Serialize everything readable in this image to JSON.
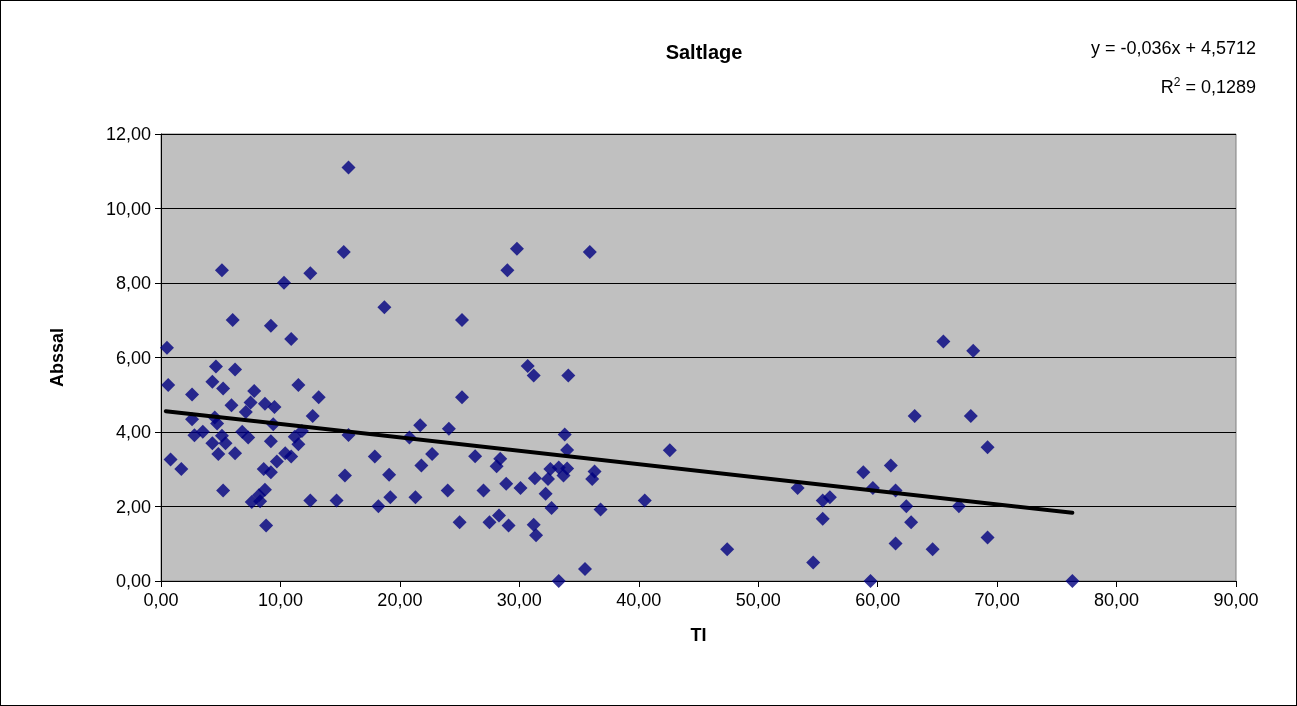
{
  "chart_data": {
    "type": "scatter",
    "title": "Saltlage",
    "xlabel": "TI",
    "ylabel": "Abssal",
    "annotations": [
      "y = -0,036x + 4,5712",
      "R$^{2}$ = 0,1289"
    ],
    "xlim": [
      0,
      90
    ],
    "xticks": [
      {
        "value": 0,
        "label": "0,00"
      },
      {
        "value": 10,
        "label": "10,00"
      },
      {
        "value": 20,
        "label": "20,00"
      },
      {
        "value": 30,
        "label": "30,00"
      },
      {
        "value": 40,
        "label": "40,00"
      },
      {
        "value": 50,
        "label": "50,00"
      },
      {
        "value": 60,
        "label": "60,00"
      },
      {
        "value": 70,
        "label": "70,00"
      },
      {
        "value": 80,
        "label": "80,00"
      },
      {
        "value": 90,
        "label": "90,00"
      }
    ],
    "ylim": [
      0,
      12
    ],
    "yticks": [
      {
        "value": 0,
        "label": "0,00"
      },
      {
        "value": 2,
        "label": "2,00"
      },
      {
        "value": 4,
        "label": "4,00"
      },
      {
        "value": 6,
        "label": "6,00"
      },
      {
        "value": 8,
        "label": "8,00"
      },
      {
        "value": 10,
        "label": "10,00"
      },
      {
        "value": 12,
        "label": "12,00"
      }
    ],
    "grid": "y",
    "marker": "diamond",
    "series": [
      {
        "color": "#000080",
        "x": [
          15.7,
          15.3,
          5.1,
          10.3,
          12.5,
          6.0,
          9.2,
          10.9,
          18.7,
          0.5,
          4.6,
          6.2,
          0.6,
          4.3,
          5.2,
          2.6,
          7.8,
          11.5,
          13.2,
          5.9,
          7.5,
          7.1,
          8.7,
          9.5,
          12.7,
          2.6,
          4.5,
          4.7,
          9.4,
          2.8,
          3.5,
          5.1,
          5.4,
          4.3,
          4.8,
          6.2,
          6.8,
          7.3,
          9.2,
          11.2,
          11.8,
          11.5,
          15.7,
          10.4,
          10.9,
          0.8,
          1.7,
          9.7,
          8.6,
          9.2,
          17.9,
          15.4,
          19.1,
          5.2,
          8.7,
          8.2,
          7.6,
          8.3,
          12.5,
          14.7,
          19.2,
          18.2,
          8.8,
          29.8,
          35.9,
          29.0,
          25.2,
          30.7,
          31.2,
          34.1,
          25.2,
          20.8,
          21.7,
          24.1,
          33.8,
          34.0,
          42.6,
          22.7,
          21.8,
          26.3,
          28.4,
          28.1,
          32.6,
          33.3,
          34.0,
          33.7,
          32.4,
          31.3,
          36.3,
          36.1,
          28.9,
          30.1,
          32.2,
          32.7,
          21.3,
          24.0,
          27.0,
          36.8,
          40.5,
          25.0,
          27.5,
          28.3,
          29.1,
          31.2,
          31.4,
          35.5,
          33.3,
          65.5,
          68.0,
          63.1,
          67.8,
          69.2,
          47.4,
          53.3,
          55.4,
          56.0,
          55.4,
          54.6,
          58.8,
          59.6,
          61.1,
          61.5,
          62.4,
          62.8,
          61.5,
          64.6,
          66.8,
          69.2,
          59.4,
          76.3
        ],
        "values": [
          11.1,
          8.83,
          8.34,
          8.01,
          8.26,
          7.01,
          6.85,
          6.5,
          7.35,
          6.26,
          5.76,
          5.68,
          5.26,
          5.35,
          5.17,
          5.01,
          5.1,
          5.26,
          4.93,
          4.72,
          4.79,
          4.54,
          4.76,
          4.67,
          4.43,
          4.34,
          4.39,
          4.23,
          4.21,
          3.91,
          4.01,
          3.9,
          3.7,
          3.7,
          3.41,
          3.43,
          4.01,
          3.85,
          3.75,
          3.87,
          4.03,
          3.67,
          3.92,
          3.43,
          3.34,
          3.26,
          3.01,
          3.21,
          3.01,
          2.92,
          3.34,
          2.83,
          2.85,
          2.43,
          2.45,
          2.3,
          2.12,
          2.14,
          2.16,
          2.16,
          2.25,
          2.01,
          1.49,
          8.92,
          8.83,
          8.34,
          7.01,
          5.77,
          5.52,
          5.52,
          4.93,
          3.85,
          4.18,
          4.09,
          3.93,
          3.52,
          3.51,
          3.41,
          3.1,
          3.35,
          3.28,
          3.08,
          3.01,
          3.05,
          3.02,
          2.83,
          2.74,
          2.76,
          2.94,
          2.74,
          2.61,
          2.5,
          2.34,
          1.96,
          2.25,
          2.43,
          2.43,
          1.92,
          2.16,
          1.58,
          1.58,
          1.76,
          1.49,
          1.51,
          1.23,
          0.32,
          0.0,
          6.43,
          6.18,
          4.43,
          4.43,
          3.59,
          0.85,
          2.5,
          2.16,
          2.25,
          1.67,
          0.5,
          2.92,
          2.5,
          3.1,
          2.43,
          2.01,
          1.58,
          1.01,
          0.85,
          2.01,
          1.17,
          0.0,
          0.0
        ]
      },
      {
        "type": "line",
        "color": "#000000",
        "marker": "none",
        "x": [
          0.4,
          76.3
        ],
        "values": [
          4.56,
          1.83
        ]
      }
    ]
  }
}
